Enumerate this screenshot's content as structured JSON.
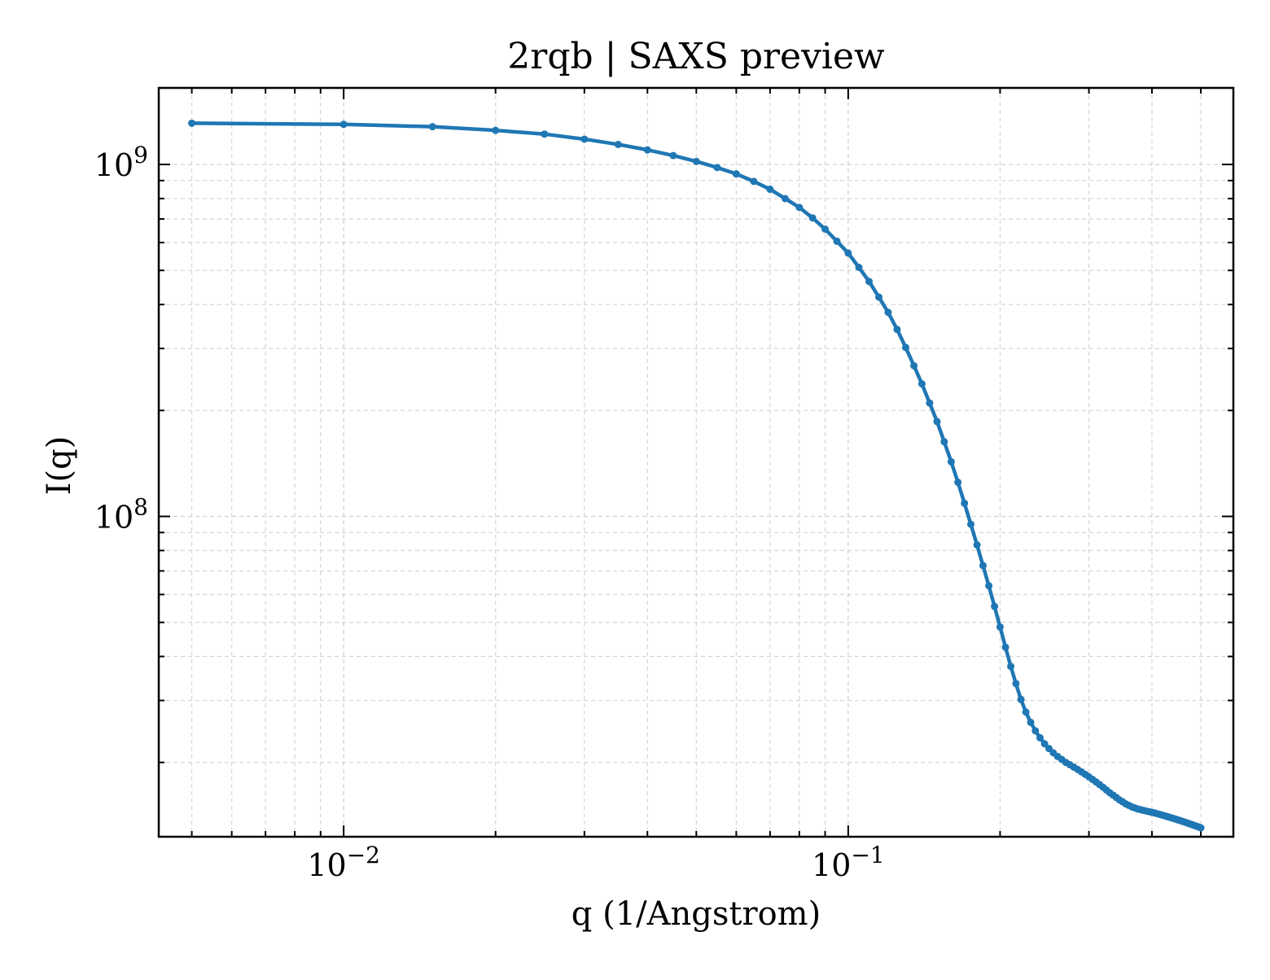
{
  "chart_data": {
    "type": "line",
    "title": "2rqb | SAXS preview",
    "xlabel": "q (1/Angstrom)",
    "ylabel": "I(q)",
    "xscale": "log",
    "yscale": "log",
    "xlim": [
      0.0043,
      0.58
    ],
    "ylim": [
      12300000.0,
      1650000000.0
    ],
    "xticks": [
      {
        "value": 0.01,
        "base": "10",
        "exp": "−2"
      },
      {
        "value": 0.1,
        "base": "10",
        "exp": "−1"
      }
    ],
    "yticks": [
      {
        "value": 100000000.0,
        "base": "10",
        "exp": "8"
      },
      {
        "value": 1000000000.0,
        "base": "10",
        "exp": "9"
      }
    ],
    "grid": true,
    "legend": "none",
    "line_color": "#1f77b4",
    "series": [
      {
        "x": [
          0.005,
          0.01,
          0.015,
          0.02,
          0.025,
          0.03,
          0.035,
          0.04,
          0.045,
          0.05,
          0.055,
          0.06,
          0.065,
          0.07,
          0.075,
          0.08,
          0.085,
          0.09,
          0.095,
          0.1,
          0.105,
          0.11,
          0.115,
          0.12,
          0.125,
          0.13,
          0.135,
          0.14,
          0.145,
          0.15,
          0.155,
          0.16,
          0.165,
          0.17,
          0.175,
          0.18,
          0.185,
          0.19,
          0.195,
          0.2,
          0.205,
          0.21,
          0.215,
          0.22,
          0.225,
          0.23,
          0.235,
          0.24,
          0.245,
          0.25,
          0.255,
          0.26,
          0.265,
          0.27,
          0.275,
          0.28,
          0.285,
          0.29,
          0.295,
          0.3,
          0.305,
          0.31,
          0.315,
          0.32,
          0.325,
          0.33,
          0.335,
          0.34,
          0.345,
          0.35,
          0.355,
          0.36,
          0.365,
          0.37,
          0.375,
          0.38,
          0.385,
          0.39,
          0.395,
          0.4,
          0.405,
          0.41,
          0.415,
          0.42,
          0.425,
          0.43,
          0.435,
          0.44,
          0.445,
          0.45,
          0.455,
          0.46,
          0.465,
          0.47,
          0.475,
          0.48,
          0.485,
          0.49,
          0.495,
          0.5
        ],
        "y": [
          1310000000.0,
          1300000000.0,
          1280000000.0,
          1250000000.0,
          1220000000.0,
          1180000000.0,
          1140000000.0,
          1100000000.0,
          1060000000.0,
          1020000000.0,
          980000000.0,
          940000000.0,
          895000000.0,
          850000000.0,
          800000000.0,
          755000000.0,
          705000000.0,
          655000000.0,
          605000000.0,
          560000000.0,
          510000000.0,
          465000000.0,
          420000000.0,
          380000000.0,
          340000000.0,
          302000000.0,
          268000000.0,
          238000000.0,
          210000000.0,
          186000000.0,
          163000000.0,
          143000000.0,
          125000000.0,
          109000000.0,
          95000000.0,
          83000000.0,
          72500000.0,
          63500000.0,
          55500000.0,
          48500000.0,
          42500000.0,
          37500000.0,
          33500000.0,
          30200000.0,
          27800000.0,
          26000000.0,
          24600000.0,
          23500000.0,
          22600000.0,
          21900000.0,
          21300000.0,
          20800000.0,
          20400000.0,
          20000000.0,
          19700000.0,
          19400000.0,
          19100000.0,
          18800000.0,
          18500000.0,
          18200000.0,
          17900000.0,
          17600000.0,
          17300000.0,
          17000000.0,
          16700000.0,
          16400000.0,
          16150000.0,
          15900000.0,
          15650000.0,
          15450000.0,
          15250000.0,
          15100000.0,
          14950000.0,
          14850000.0,
          14750000.0,
          14680000.0,
          14610000.0,
          14550000.0,
          14490000.0,
          14430000.0,
          14370000.0,
          14300000.0,
          14230000.0,
          14160000.0,
          14090000.0,
          14020000.0,
          13950000.0,
          13880000.0,
          13810000.0,
          13740000.0,
          13670000.0,
          13600000.0,
          13530000.0,
          13460000.0,
          13390000.0,
          13320000.0,
          13250000.0,
          13180000.0,
          13110000.0,
          13040000.0
        ]
      }
    ]
  }
}
